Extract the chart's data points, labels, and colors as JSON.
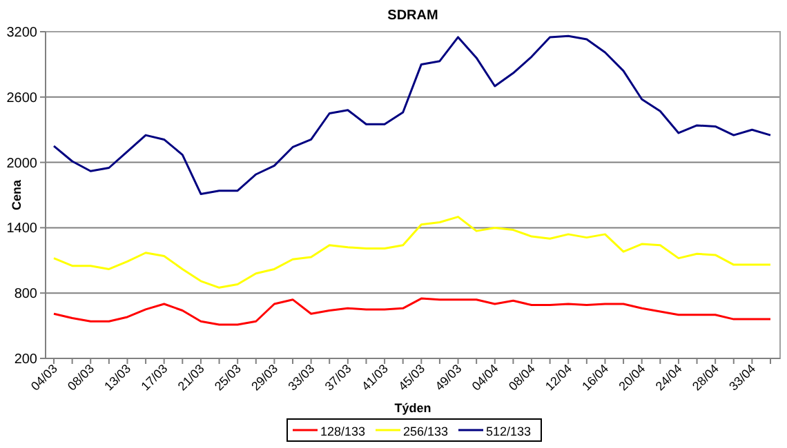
{
  "chart_data": {
    "type": "line",
    "title": "SDRAM",
    "xlabel": "Týden",
    "ylabel": "Cena",
    "categories": [
      "04/03",
      null,
      "08/03",
      null,
      "13/03",
      null,
      "17/03",
      null,
      "21/03",
      null,
      "25/03",
      null,
      "29/03",
      null,
      "33/03",
      null,
      "37/03",
      null,
      "41/03",
      null,
      "45/03",
      null,
      "49/03",
      null,
      "04/04",
      null,
      "08/04",
      null,
      "12/04",
      null,
      "16/04",
      null,
      "20/04",
      null,
      "24/04",
      null,
      "28/04",
      null,
      "33/04",
      null
    ],
    "ylim": [
      200,
      3200
    ],
    "yticks": [
      200,
      800,
      1400,
      2000,
      2600,
      3200
    ],
    "grid": "y",
    "legend": "bottom",
    "marker": "none",
    "line_style": "solid",
    "series": [
      {
        "name": "128/133",
        "color": "#ff0000",
        "values": [
          610,
          570,
          540,
          540,
          580,
          650,
          700,
          640,
          540,
          510,
          510,
          540,
          700,
          740,
          610,
          640,
          660,
          650,
          650,
          660,
          750,
          740,
          740,
          740,
          700,
          730,
          690,
          690,
          700,
          690,
          700,
          700,
          660,
          630,
          600,
          600,
          600,
          560,
          560,
          560
        ]
      },
      {
        "name": "256/133",
        "color": "#ffff00",
        "values": [
          1120,
          1050,
          1050,
          1020,
          1090,
          1170,
          1140,
          1020,
          910,
          850,
          880,
          980,
          1020,
          1110,
          1130,
          1240,
          1220,
          1210,
          1210,
          1240,
          1430,
          1450,
          1500,
          1370,
          1400,
          1380,
          1320,
          1300,
          1340,
          1310,
          1340,
          1180,
          1250,
          1240,
          1120,
          1160,
          1150,
          1060,
          1060,
          1060
        ]
      },
      {
        "name": "512/133",
        "color": "#000080",
        "values": [
          2150,
          2010,
          1920,
          1950,
          2100,
          2250,
          2210,
          2070,
          1710,
          1740,
          1740,
          1890,
          1970,
          2140,
          2210,
          2450,
          2480,
          2350,
          2350,
          2460,
          2900,
          2930,
          3150,
          2960,
          2700,
          2820,
          2970,
          3150,
          3160,
          3130,
          3010,
          2840,
          2580,
          2470,
          2270,
          2340,
          2330,
          2250,
          2300,
          2250
        ]
      }
    ]
  }
}
